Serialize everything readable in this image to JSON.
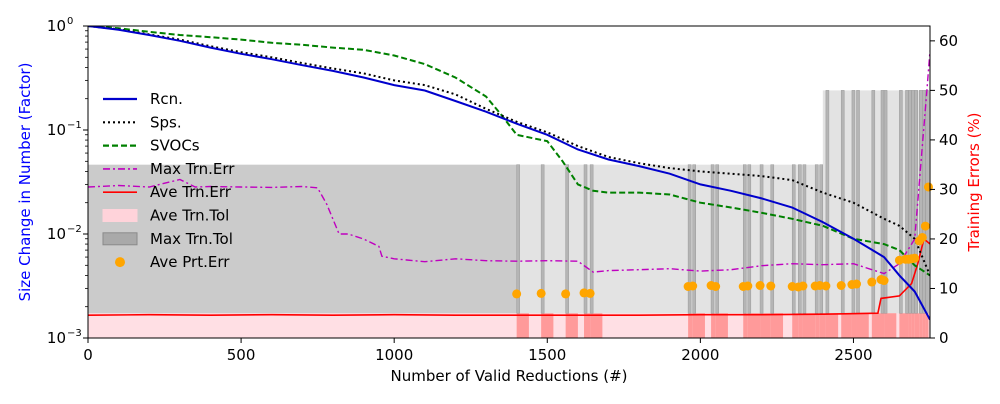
{
  "chart_data": {
    "type": "line",
    "title": "",
    "xlabel": "Number of Valid Reductions (#)",
    "ylabel_left": "Size Change in Number (Factor)",
    "ylabel_right": "Training Errors (%)",
    "xlim": [
      0,
      2750
    ],
    "ylim_left": [
      0.001,
      1
    ],
    "ylim_right": [
      0,
      63
    ],
    "yscale_left": "log",
    "x_ticks": [
      0,
      500,
      1000,
      1500,
      2000,
      2500
    ],
    "y_left_ticks": [
      {
        "value": 0.001,
        "label": "10",
        "exp": "−3"
      },
      {
        "value": 0.01,
        "label": "10",
        "exp": "−2"
      },
      {
        "value": 0.1,
        "label": "10",
        "exp": "−1"
      },
      {
        "value": 1,
        "label": "10",
        "exp": "0"
      }
    ],
    "y_right_ticks": [
      0,
      10,
      20,
      30,
      40,
      50,
      60
    ],
    "legend_position": "left",
    "colors": {
      "rcn": "#0000cc",
      "sps": "#000000",
      "svocs": "#008000",
      "max_trn_err": "#bf00bf",
      "ave_trn_err": "#ff0000",
      "ave_trn_tol": "#ffb6c1",
      "max_trn_tol": "#808080",
      "ave_prt_err": "#ffa500",
      "left_axis_label": "#0000ff",
      "right_axis_label": "#ff0000"
    },
    "legend": [
      {
        "key": "rcn",
        "label": "Rcn."
      },
      {
        "key": "sps",
        "label": "Sps."
      },
      {
        "key": "svocs",
        "label": "SVOCs"
      },
      {
        "key": "max_trn_err",
        "label": "Max Trn.Err"
      },
      {
        "key": "ave_trn_err",
        "label": "Ave Trn.Err"
      },
      {
        "key": "ave_trn_tol",
        "label": "Ave Trn.Tol"
      },
      {
        "key": "max_trn_tol",
        "label": "Max Trn.Tol"
      },
      {
        "key": "ave_prt_err",
        "label": "Ave Prt.Err"
      }
    ],
    "series": [
      {
        "name": "Rcn.",
        "axis": "left",
        "x": [
          0,
          100,
          200,
          300,
          400,
          500,
          600,
          700,
          800,
          900,
          1000,
          1100,
          1200,
          1300,
          1400,
          1500,
          1600,
          1700,
          1800,
          1900,
          2000,
          2100,
          2200,
          2300,
          2400,
          2500,
          2600,
          2650,
          2700,
          2750
        ],
        "y": [
          1.0,
          0.92,
          0.82,
          0.72,
          0.62,
          0.54,
          0.48,
          0.42,
          0.37,
          0.32,
          0.27,
          0.24,
          0.19,
          0.15,
          0.115,
          0.09,
          0.065,
          0.052,
          0.045,
          0.038,
          0.03,
          0.026,
          0.022,
          0.018,
          0.013,
          0.009,
          0.006,
          0.004,
          0.0028,
          0.0015
        ]
      },
      {
        "name": "Sps.",
        "axis": "left",
        "x": [
          0,
          100,
          200,
          300,
          400,
          500,
          600,
          700,
          800,
          900,
          1000,
          1100,
          1200,
          1300,
          1400,
          1500,
          1600,
          1700,
          1800,
          1900,
          2000,
          2100,
          2200,
          2300,
          2400,
          2500,
          2600,
          2650,
          2700,
          2750
        ],
        "y": [
          1.0,
          0.93,
          0.83,
          0.74,
          0.64,
          0.56,
          0.5,
          0.44,
          0.39,
          0.35,
          0.3,
          0.27,
          0.22,
          0.16,
          0.12,
          0.095,
          0.07,
          0.055,
          0.048,
          0.043,
          0.04,
          0.038,
          0.036,
          0.033,
          0.025,
          0.02,
          0.014,
          0.012,
          0.009,
          0.004
        ]
      },
      {
        "name": "SVOCs",
        "axis": "left",
        "x": [
          0,
          100,
          200,
          300,
          400,
          500,
          600,
          700,
          800,
          900,
          1000,
          1100,
          1200,
          1300,
          1350,
          1400,
          1500,
          1550,
          1600,
          1650,
          1700,
          1800,
          1900,
          2000,
          2100,
          2200,
          2300,
          2400,
          2500,
          2600,
          2650,
          2700,
          2750
        ],
        "y": [
          1.0,
          0.95,
          0.88,
          0.82,
          0.78,
          0.74,
          0.69,
          0.66,
          0.62,
          0.59,
          0.52,
          0.43,
          0.32,
          0.21,
          0.14,
          0.09,
          0.078,
          0.05,
          0.03,
          0.026,
          0.025,
          0.025,
          0.024,
          0.02,
          0.018,
          0.016,
          0.014,
          0.012,
          0.009,
          0.008,
          0.007,
          0.005,
          0.004
        ]
      },
      {
        "name": "Max Trn.Err",
        "axis": "right",
        "x": [
          0,
          100,
          200,
          300,
          350,
          400,
          500,
          600,
          700,
          750,
          780,
          800,
          820,
          850,
          900,
          950,
          960,
          1000,
          1100,
          1200,
          1300,
          1400,
          1500,
          1600,
          1650,
          1700,
          1800,
          1900,
          2000,
          2100,
          2200,
          2300,
          2400,
          2500,
          2600,
          2650,
          2700,
          2720,
          2740,
          2750
        ],
        "y": [
          30.5,
          30.8,
          30.5,
          32,
          30.5,
          30.6,
          30.5,
          30.4,
          30.6,
          30.3,
          27,
          24,
          21,
          21,
          20,
          18.5,
          16.5,
          16,
          15.4,
          16,
          15.6,
          15.5,
          15.6,
          15.5,
          13.3,
          13.6,
          13.8,
          14,
          13.5,
          13.8,
          14.6,
          15,
          14.8,
          15,
          13,
          15,
          20,
          35,
          50,
          58
        ]
      },
      {
        "name": "Ave Trn.Err",
        "axis": "right",
        "x": [
          0,
          200,
          400,
          600,
          800,
          1000,
          1200,
          1400,
          1600,
          1800,
          2000,
          2200,
          2400,
          2580,
          2590,
          2650,
          2690,
          2710,
          2730,
          2750
        ],
        "y": [
          4.6,
          4.7,
          4.6,
          4.7,
          4.6,
          4.7,
          4.6,
          4.6,
          4.6,
          4.6,
          4.7,
          4.7,
          4.8,
          5.0,
          8.0,
          8.5,
          11,
          15,
          20,
          19
        ]
      },
      {
        "name": "Ave Prt.Err",
        "axis": "right",
        "marker": "circle",
        "x": [
          1400,
          1480,
          1560,
          1620,
          1640,
          1960,
          1975,
          2035,
          2050,
          2140,
          2155,
          2195,
          2230,
          2300,
          2320,
          2335,
          2375,
          2390,
          2410,
          2460,
          2495,
          2510,
          2560,
          2590,
          2600,
          2650,
          2670,
          2680,
          2690,
          2700,
          2715,
          2725,
          2735,
          2745
        ],
        "y": [
          8.9,
          9.0,
          8.9,
          9.1,
          9.0,
          10.4,
          10.5,
          10.6,
          10.4,
          10.4,
          10.5,
          10.6,
          10.5,
          10.4,
          10.3,
          10.5,
          10.5,
          10.6,
          10.5,
          10.6,
          10.8,
          10.9,
          11.3,
          11.8,
          11.6,
          15.7,
          15.9,
          15.9,
          16.0,
          16.1,
          19.6,
          20.3,
          22.6,
          30.5
        ]
      },
      {
        "name": "Max Trn.Tol",
        "axis": "right",
        "kind": "band",
        "segments": [
          {
            "x0": 0,
            "x1": 1400,
            "y": 35
          },
          {
            "x0": 1400,
            "x1": 2400,
            "y": 35
          },
          {
            "x0": 2400,
            "x1": 2750,
            "y": 50
          }
        ]
      },
      {
        "name": "Ave Trn.Tol",
        "axis": "right",
        "kind": "band",
        "segments": [
          {
            "x0": 0,
            "x1": 1400,
            "y": 5
          },
          {
            "x0": 1400,
            "x1": 2750,
            "y": 5
          }
        ]
      }
    ]
  }
}
